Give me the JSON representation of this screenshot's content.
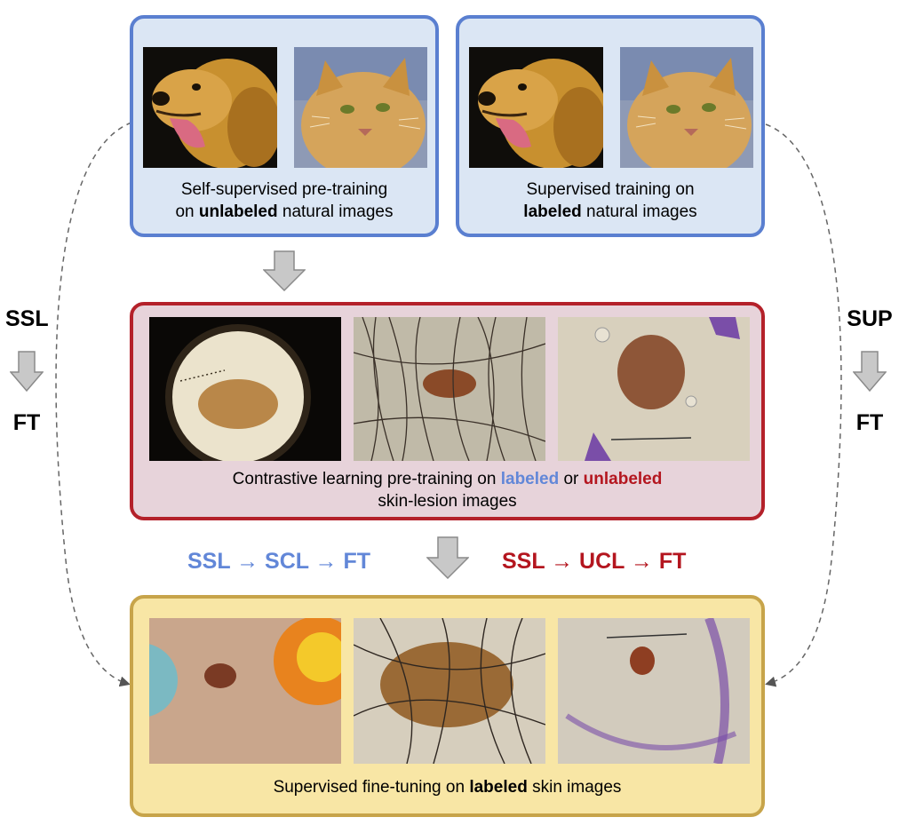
{
  "panels": {
    "ssl_pretrain": {
      "line1": "Self-supervised pre-training",
      "line2_pre": "on ",
      "line2_bold": "unlabeled",
      "line2_post": " natural images"
    },
    "sup_train": {
      "line1": "Supervised training on",
      "line2_bold": "labeled",
      "line2_post": " natural images"
    },
    "contrastive": {
      "line1_pre": "Contrastive learning pre-training on ",
      "labeled": "labeled",
      "or": " or ",
      "unlabeled": "unlabeled",
      "line2": "skin-lesion images"
    },
    "finetune": {
      "pre": "Supervised fine-tuning on ",
      "bold": "labeled",
      "post": " skin images"
    }
  },
  "side_labels": {
    "left_top": "SSL",
    "left_bottom": "FT",
    "right_top": "SUP",
    "right_bottom": "FT"
  },
  "flows": {
    "blue": "SSL → SCL → FT",
    "red": "SSL → UCL → FT"
  },
  "images": {
    "natural": [
      "dog-photo",
      "cat-photo"
    ],
    "skin_pretrain": [
      "lesion-dermoscopy-1",
      "lesion-hairy-2",
      "lesion-ruler-3"
    ],
    "skin_finetune": [
      "lesion-stickers-4",
      "lesion-hairy-5",
      "lesion-ink-6"
    ]
  },
  "colors": {
    "blue_panel": "#dbe6f4",
    "blue_border": "#5a7fd0",
    "red_panel": "#e7d3da",
    "red_border": "#b4212a",
    "yellow_panel": "#f8e6a5",
    "yellow_border": "#c7a44a",
    "scl_blue": "#6287d8",
    "ucl_red": "#b4161f"
  }
}
